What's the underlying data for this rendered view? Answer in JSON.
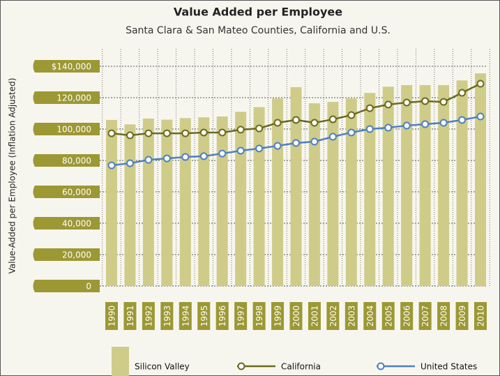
{
  "chart_data": {
    "type": "combo",
    "title": "Value Added per Employee",
    "subtitle": "Santa Clara & San Mateo Counties, California and U.S.",
    "y_label": "Value-Added per Employee (Inflation Adjusted)",
    "categories": [
      "1990",
      "1991",
      "1992",
      "1993",
      "1994",
      "1995",
      "1996",
      "1997",
      "1998",
      "1999",
      "2000",
      "2001",
      "2002",
      "2003",
      "2004",
      "2005",
      "2006",
      "2007",
      "2008",
      "2009",
      "2010"
    ],
    "series": [
      {
        "name": "Silicon Valley",
        "type": "bar",
        "color": "#cfcc8a",
        "values": [
          105800,
          103000,
          106700,
          106000,
          107000,
          107500,
          108000,
          111000,
          114000,
          119500,
          126700,
          116400,
          117300,
          119500,
          123000,
          127000,
          128000,
          128000,
          128000,
          131000,
          135500
        ]
      },
      {
        "name": "California",
        "type": "line",
        "color": "#6b6a1e",
        "values": [
          97300,
          96000,
          97300,
          97300,
          97300,
          97800,
          97800,
          99600,
          100400,
          104000,
          105800,
          104000,
          106200,
          108900,
          113300,
          115600,
          116900,
          117800,
          117300,
          123100,
          128900
        ]
      },
      {
        "name": "United States",
        "type": "line",
        "color": "#4f7fc0",
        "values": [
          76900,
          78200,
          80400,
          81300,
          82200,
          82700,
          84400,
          86200,
          87600,
          89300,
          91100,
          92000,
          95100,
          97800,
          100000,
          100900,
          102200,
          103100,
          104000,
          105800,
          108000
        ]
      }
    ],
    "ylim": [
      0,
      140000
    ],
    "yticks": [
      0,
      {
        "value": 20000,
        "label": "20,000"
      },
      {
        "value": 40000,
        "label": "40,000"
      },
      {
        "value": 60000,
        "label": "60,000"
      },
      {
        "value": 80000,
        "label": "80,000"
      },
      {
        "value": 100000,
        "label": "100,000"
      },
      {
        "value": 120000,
        "label": "120,000"
      },
      {
        "value": 140000,
        "label": "$140,000"
      }
    ],
    "grid": true,
    "label_color": "#9c9834"
  }
}
